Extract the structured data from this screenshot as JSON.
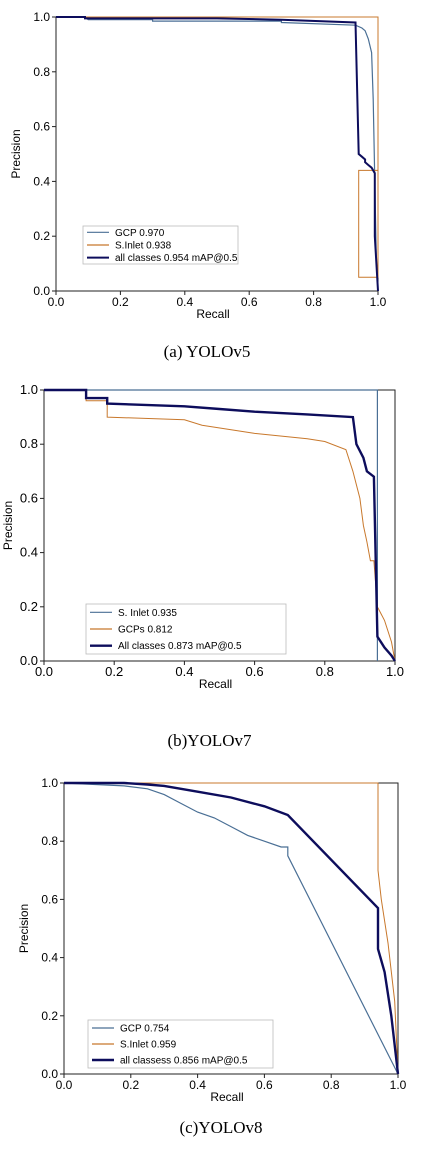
{
  "colors": {
    "blue": "#4a6f95",
    "orange": "#c8782c",
    "navy": "#0d0d5c"
  },
  "chart_data": [
    {
      "type": "line",
      "caption": "(a) YOLOv5",
      "xlabel": "Recall",
      "ylabel": "Precision",
      "xlim": [
        0,
        1
      ],
      "ylim": [
        0,
        1
      ],
      "xticks": [
        "0.0",
        "0.2",
        "0.4",
        "0.6",
        "0.8",
        "1.0"
      ],
      "yticks": [
        "0.0",
        "0.2",
        "0.4",
        "0.6",
        "0.8",
        "1.0"
      ],
      "legend_position": "bottom-left",
      "series": [
        {
          "name": "GCP 0.970",
          "color_key": "blue",
          "width": 1.2,
          "x": [
            0,
            0.09,
            0.1,
            0.3,
            0.3,
            0.7,
            0.7,
            0.93,
            0.95,
            0.96,
            0.97,
            0.98,
            0.985,
            0.99,
            0.995,
            1.0
          ],
          "y": [
            1.0,
            1.0,
            0.99,
            0.99,
            0.985,
            0.985,
            0.98,
            0.97,
            0.96,
            0.95,
            0.92,
            0.87,
            0.7,
            0.4,
            0.1,
            0.0
          ]
        },
        {
          "name": "S.Inlet 0.938",
          "color_key": "orange",
          "width": 1.0,
          "x": [
            0,
            0.94,
            0.94,
            1.0,
            1.0,
            0.94,
            0.94,
            1.0
          ],
          "y": [
            1.0,
            1.0,
            1.0,
            1.0,
            0.05,
            0.05,
            0.44,
            0.44
          ]
        },
        {
          "name": "all classes 0.954 mAP@0.5",
          "color_key": "navy",
          "width": 2.0,
          "x": [
            0,
            0.09,
            0.09,
            0.5,
            0.7,
            0.93,
            0.94,
            0.95,
            0.96,
            0.96,
            0.97,
            0.98,
            0.99,
            0.99,
            1.0
          ],
          "y": [
            1.0,
            1.0,
            0.995,
            0.995,
            0.99,
            0.98,
            0.5,
            0.49,
            0.48,
            0.47,
            0.46,
            0.45,
            0.43,
            0.2,
            0.0
          ]
        }
      ]
    },
    {
      "type": "line",
      "caption": "(b)YOLOv7",
      "xlabel": "Recall",
      "ylabel": "Precision",
      "xlim": [
        0,
        1
      ],
      "ylim": [
        0,
        1
      ],
      "xticks": [
        "0.0",
        "0.2",
        "0.4",
        "0.6",
        "0.8",
        "1.0"
      ],
      "yticks": [
        "0.0",
        "0.2",
        "0.4",
        "0.6",
        "0.8",
        "1.0"
      ],
      "legend_position": "bottom-left",
      "series": [
        {
          "name": "S. Inlet 0.935",
          "color_key": "blue",
          "width": 1.2,
          "x": [
            0,
            0.94,
            0.94,
            0.95,
            0.95
          ],
          "y": [
            1.0,
            1.0,
            1.0,
            1.0,
            0.0
          ]
        },
        {
          "name": "GCPs 0.812",
          "color_key": "orange",
          "width": 1.0,
          "x": [
            0,
            0.12,
            0.12,
            0.18,
            0.18,
            0.4,
            0.45,
            0.6,
            0.75,
            0.8,
            0.86,
            0.88,
            0.9,
            0.91,
            0.92,
            0.93,
            0.94,
            0.95,
            0.97,
            0.99,
            1.0
          ],
          "y": [
            1.0,
            1.0,
            0.96,
            0.96,
            0.9,
            0.89,
            0.87,
            0.84,
            0.82,
            0.81,
            0.78,
            0.7,
            0.6,
            0.5,
            0.44,
            0.37,
            0.37,
            0.2,
            0.15,
            0.07,
            0.0
          ]
        },
        {
          "name": "All classes 0.873 mAP@0.5",
          "color_key": "navy",
          "width": 2.4,
          "x": [
            0,
            0.12,
            0.12,
            0.18,
            0.18,
            0.4,
            0.5,
            0.6,
            0.75,
            0.88,
            0.89,
            0.91,
            0.92,
            0.94,
            0.95,
            0.97,
            0.99,
            1.0
          ],
          "y": [
            1.0,
            1.0,
            0.97,
            0.97,
            0.95,
            0.94,
            0.93,
            0.92,
            0.91,
            0.9,
            0.8,
            0.75,
            0.7,
            0.68,
            0.09,
            0.05,
            0.02,
            0.0
          ]
        }
      ]
    },
    {
      "type": "line",
      "caption": "(c)YOLOv8",
      "xlabel": "Recall",
      "ylabel": "Precision",
      "xlim": [
        0,
        1
      ],
      "ylim": [
        0,
        1
      ],
      "xticks": [
        "0.0",
        "0.2",
        "0.4",
        "0.6",
        "0.8",
        "1.0"
      ],
      "yticks": [
        "0.0",
        "0.2",
        "0.4",
        "0.6",
        "0.8",
        "1.0"
      ],
      "legend_position": "bottom-left",
      "series": [
        {
          "name": "GCP 0.754",
          "color_key": "blue",
          "width": 1.2,
          "x": [
            0,
            0.18,
            0.25,
            0.3,
            0.35,
            0.4,
            0.45,
            0.5,
            0.55,
            0.6,
            0.65,
            0.67,
            0.67,
            1.0
          ],
          "y": [
            1.0,
            0.99,
            0.98,
            0.96,
            0.93,
            0.9,
            0.88,
            0.85,
            0.82,
            0.8,
            0.78,
            0.78,
            0.75,
            0.0
          ]
        },
        {
          "name": "S.Inlet 0.959",
          "color_key": "orange",
          "width": 1.0,
          "x": [
            0,
            0.94,
            0.94,
            0.95,
            0.97,
            0.99,
            1.0
          ],
          "y": [
            1.0,
            1.0,
            0.7,
            0.6,
            0.45,
            0.25,
            0.0
          ]
        },
        {
          "name": "all classess 0.856 mAP@0.5",
          "color_key": "navy",
          "width": 2.4,
          "x": [
            0,
            0.18,
            0.25,
            0.3,
            0.35,
            0.4,
            0.5,
            0.6,
            0.67,
            0.94,
            0.94,
            0.96,
            0.98,
            1.0
          ],
          "y": [
            1.0,
            1.0,
            0.995,
            0.99,
            0.98,
            0.97,
            0.95,
            0.92,
            0.89,
            0.57,
            0.43,
            0.35,
            0.2,
            0.0
          ]
        }
      ]
    }
  ]
}
